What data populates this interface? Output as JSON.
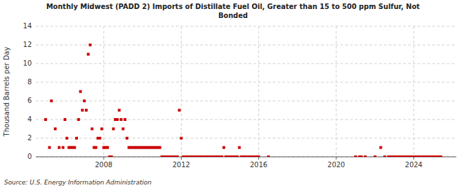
{
  "chart_data": {
    "type": "scatter",
    "title": "Monthly Midwest (PADD 2) Imports of Distillate Fuel Oil, Greater than 15 to 500 ppm Sulfur, Not\nBonded",
    "ylabel": "Thousand Barrels per Day",
    "source": "Source: U.S. Energy Information Administration",
    "color": "#cc0000",
    "marker": "square",
    "grid": true,
    "xlim": [
      2004.5,
      2026.2
    ],
    "xticks": [
      2008,
      2012,
      2016,
      2020,
      2024
    ],
    "ylim": [
      0,
      14
    ],
    "yticks": [
      0,
      2,
      4,
      6,
      8,
      10,
      12,
      14
    ],
    "x": [
      2005.0,
      2005.2,
      2005.3,
      2005.5,
      2005.7,
      2005.9,
      2006.0,
      2006.1,
      2006.2,
      2006.3,
      2006.4,
      2006.5,
      2006.6,
      2006.7,
      2006.8,
      2006.9,
      2007.0,
      2007.1,
      2007.2,
      2007.3,
      2007.4,
      2007.5,
      2007.6,
      2007.7,
      2007.8,
      2007.9,
      2008.0,
      2008.1,
      2008.2,
      2008.3,
      2008.4,
      2008.5,
      2008.6,
      2008.7,
      2008.8,
      2008.9,
      2009.0,
      2009.1,
      2009.2,
      2009.3,
      2009.4,
      2009.5,
      2009.6,
      2009.7,
      2009.8,
      2009.9,
      2010.0,
      2010.1,
      2010.2,
      2010.3,
      2010.4,
      2010.5,
      2010.6,
      2010.7,
      2010.8,
      2010.9,
      2011.0,
      2011.1,
      2011.2,
      2011.3,
      2011.4,
      2011.5,
      2011.6,
      2011.7,
      2011.8,
      2011.9,
      2012.0,
      2012.1,
      2012.2,
      2012.3,
      2012.4,
      2012.5,
      2012.6,
      2012.7,
      2012.8,
      2012.9,
      2013.0,
      2013.1,
      2013.2,
      2013.3,
      2013.4,
      2013.5,
      2013.6,
      2013.7,
      2013.8,
      2013.9,
      2014.0,
      2014.1,
      2014.2,
      2014.3,
      2014.4,
      2014.5,
      2014.6,
      2014.7,
      2014.8,
      2014.9,
      2015.0,
      2015.1,
      2015.2,
      2015.3,
      2015.4,
      2015.5,
      2015.6,
      2015.7,
      2015.8,
      2015.9,
      2016.0,
      2016.5,
      2021.0,
      2021.2,
      2021.3,
      2021.5,
      2022.0,
      2022.3,
      2022.5,
      2022.7,
      2022.8,
      2022.9,
      2023.0,
      2023.1,
      2023.2,
      2023.3,
      2023.4,
      2023.5,
      2023.6,
      2023.7,
      2023.8,
      2023.9,
      2024.0,
      2024.1,
      2024.2,
      2024.3,
      2024.4,
      2024.5,
      2024.6,
      2024.7,
      2024.8,
      2024.9,
      2025.0,
      2025.1,
      2025.2,
      2025.3,
      2025.4
    ],
    "values": [
      4,
      1,
      6,
      3,
      1,
      1,
      4,
      2,
      1,
      1,
      1,
      1,
      2,
      4,
      7,
      5,
      6,
      5,
      11,
      12,
      3,
      1,
      1,
      2,
      2,
      3,
      1,
      1,
      1,
      0,
      0,
      3,
      4,
      4,
      5,
      4,
      3,
      4,
      2,
      1,
      1,
      1,
      1,
      1,
      1,
      1,
      1,
      1,
      1,
      1,
      1,
      1,
      1,
      1,
      1,
      1,
      0,
      0,
      0,
      0,
      0,
      0,
      0,
      0,
      0,
      5,
      2,
      0,
      0,
      0,
      0,
      0,
      0,
      0,
      0,
      0,
      0,
      0,
      0,
      0,
      0,
      0,
      0,
      0,
      0,
      0,
      0,
      0,
      1,
      0,
      0,
      0,
      0,
      0,
      0,
      0,
      1,
      0,
      0,
      0,
      0,
      0,
      0,
      0,
      0,
      0,
      0,
      0,
      0,
      0,
      0,
      0,
      0,
      1,
      0,
      0,
      0,
      0,
      0,
      0,
      0,
      0,
      0,
      0,
      0,
      0,
      0,
      0,
      0,
      0,
      0,
      0,
      0,
      0,
      0,
      0,
      0,
      0,
      0,
      0,
      0,
      0,
      0
    ]
  }
}
